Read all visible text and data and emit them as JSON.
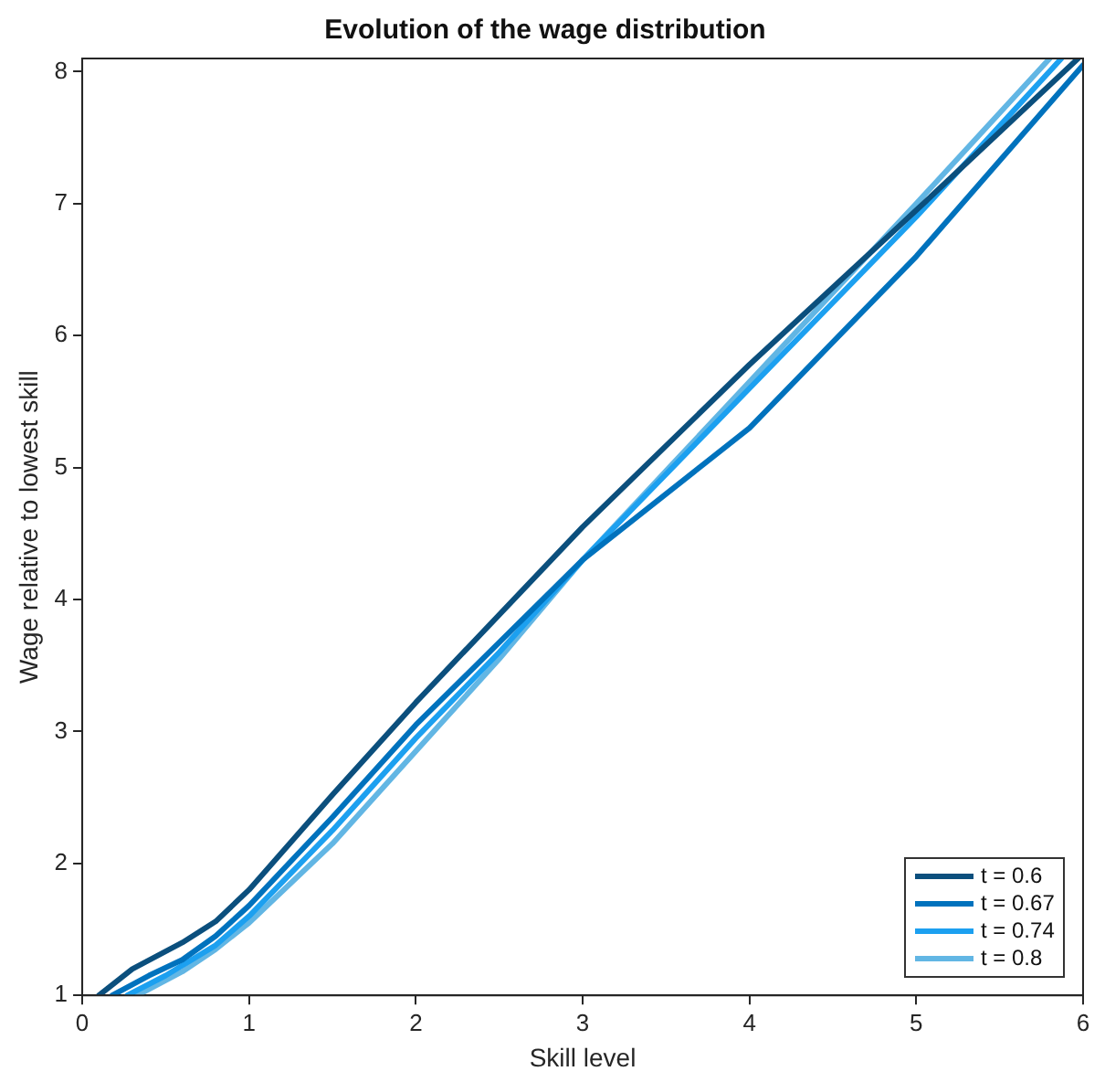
{
  "chart_data": {
    "type": "line",
    "title": "Evolution of the wage distribution",
    "xlabel": "Skill level",
    "ylabel": "Wage relative to lowest skill",
    "xlim": [
      0,
      6
    ],
    "ylim": [
      1,
      8.1
    ],
    "xticks": [
      0,
      1,
      2,
      3,
      4,
      5,
      6
    ],
    "yticks": [
      1,
      2,
      3,
      4,
      5,
      6,
      7,
      8
    ],
    "grid": false,
    "legend": "bottom right",
    "marker": "none",
    "line_style": "solid",
    "series": [
      {
        "name": "t = 0.6",
        "color": "#0b4f7d",
        "x": [
          0.1,
          0.3,
          0.6,
          0.8,
          1,
          1.5,
          2,
          3,
          4,
          5,
          5.97
        ],
        "values": [
          1,
          1.2,
          1.4,
          1.56,
          1.8,
          2.52,
          3.22,
          4.55,
          5.78,
          6.95,
          8.1
        ]
      },
      {
        "name": "t = 0.67",
        "color": "#0072bd",
        "x": [
          0.18,
          0.4,
          0.6,
          0.8,
          1,
          1.5,
          2,
          3,
          4,
          4.5,
          5,
          6
        ],
        "values": [
          1,
          1.15,
          1.27,
          1.45,
          1.68,
          2.35,
          3.05,
          4.3,
          5.3,
          5.95,
          6.6,
          8.05
        ]
      },
      {
        "name": "t = 0.74",
        "color": "#1ca0f0",
        "x": [
          0.27,
          0.5,
          0.8,
          1,
          1.5,
          2,
          2.5,
          3,
          4,
          5,
          5.87
        ],
        "values": [
          1,
          1.15,
          1.38,
          1.6,
          2.25,
          2.95,
          3.6,
          4.3,
          5.6,
          6.9,
          8.1
        ]
      },
      {
        "name": "t = 0.8",
        "color": "#62b6e4",
        "x": [
          0.33,
          0.6,
          0.8,
          1,
          1.5,
          2,
          2.5,
          3,
          4,
          5,
          5.8
        ],
        "values": [
          1,
          1.18,
          1.35,
          1.55,
          2.15,
          2.85,
          3.55,
          4.3,
          5.65,
          7,
          8.1
        ]
      }
    ]
  }
}
